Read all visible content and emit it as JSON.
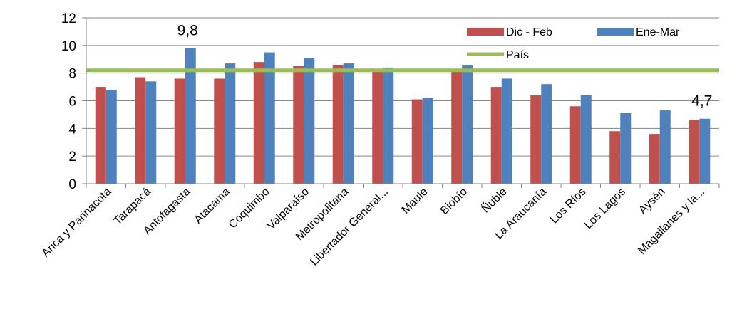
{
  "chart_data": {
    "type": "bar",
    "categories": [
      "Arica y Parinacota",
      "Tarapacá",
      "Antofagasta",
      "Atacama",
      "Coquimbo",
      "Valparaíso",
      "Metropolitana",
      "Libertador General...",
      "Maule",
      "Biobío",
      "Ñuble",
      "La Araucanía",
      "Los Ríos",
      "Los Lagos",
      "Aysén",
      "Magallanes y la..."
    ],
    "series": [
      {
        "name": "Dic - Feb",
        "color": "#C0504D",
        "values": [
          7.0,
          7.7,
          7.6,
          7.6,
          8.8,
          8.5,
          8.6,
          8.2,
          6.1,
          8.3,
          7.0,
          6.4,
          5.6,
          3.8,
          3.6,
          4.6
        ]
      },
      {
        "name": "Ene-Mar",
        "color": "#4F81BD",
        "values": [
          6.8,
          7.4,
          9.8,
          8.7,
          9.5,
          9.1,
          8.7,
          8.4,
          6.2,
          8.6,
          7.6,
          7.2,
          6.4,
          5.1,
          5.3,
          4.7
        ]
      }
    ],
    "reference_line": {
      "name": "País",
      "color": "#9BBB59",
      "value": 8.2
    },
    "data_labels": [
      {
        "series": 1,
        "index": 2,
        "text": "9,8"
      },
      {
        "series": 1,
        "index": 15,
        "text": "4,7"
      }
    ],
    "yticks": [
      "0",
      "2",
      "4",
      "6",
      "8",
      "10",
      "12"
    ],
    "ylim": [
      0,
      12
    ],
    "grid": true,
    "legend_position": "top-right"
  }
}
